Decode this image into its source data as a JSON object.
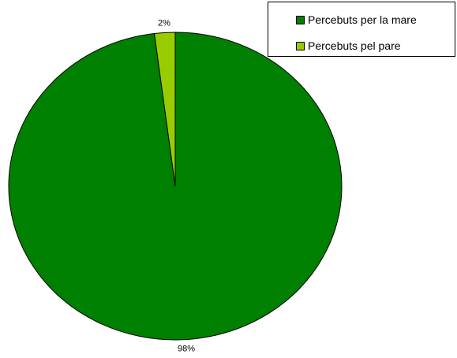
{
  "chart_data": {
    "type": "pie",
    "slices": [
      {
        "label": "Percebuts per la mare",
        "value": 98,
        "display": "98%",
        "color": "#008000"
      },
      {
        "label": "Percebuts pel pare",
        "value": 2,
        "display": "2%",
        "color": "#99CC00"
      }
    ],
    "legend_position": "top-right"
  }
}
